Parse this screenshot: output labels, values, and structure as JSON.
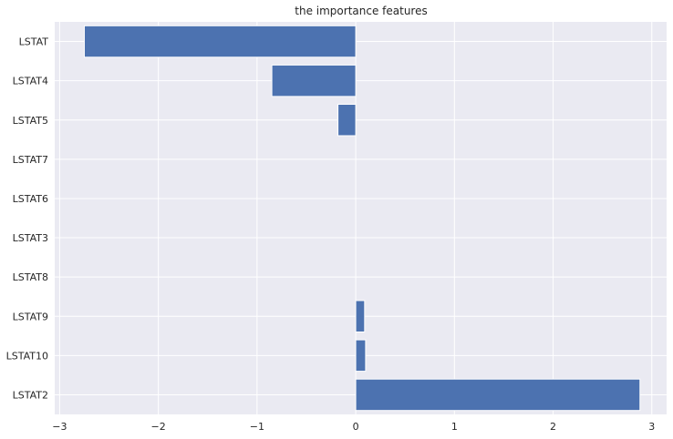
{
  "chart_data": {
    "type": "bar",
    "orientation": "horizontal",
    "title": "the importance features",
    "xlabel": "",
    "ylabel": "",
    "categories": [
      "LSTAT",
      "LSTAT4",
      "LSTAT5",
      "LSTAT7",
      "LSTAT6",
      "LSTAT3",
      "LSTAT8",
      "LSTAT9",
      "LSTAT10",
      "LSTAT2"
    ],
    "values": [
      -2.75,
      -0.85,
      -0.18,
      0.0,
      0.0,
      0.0,
      0.0,
      0.09,
      0.1,
      2.88
    ],
    "xlim": [
      -3.05,
      3.15
    ],
    "xticks": [
      -3,
      -2,
      -1,
      0,
      1,
      2,
      3
    ],
    "xtick_labels": [
      "−3",
      "−2",
      "−1",
      "0",
      "1",
      "2",
      "3"
    ],
    "grid": true,
    "colors": {
      "bar": "#4c72b0",
      "plot_background": "#eaeaf2",
      "grid": "#ffffff",
      "text": "#262626"
    }
  }
}
